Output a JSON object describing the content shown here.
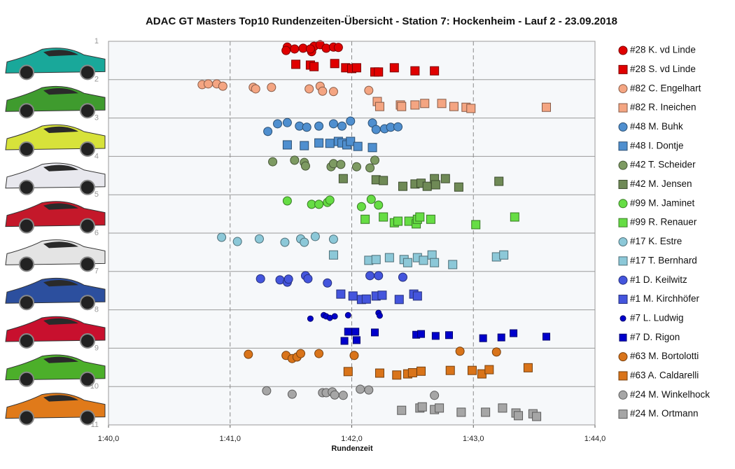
{
  "chart_data": {
    "type": "scatter",
    "title": "ADAC  GT Masters  Top10  Rundenzeiten-Übersicht  - Station  7: Hockenheim  - Lauf 2 - 23.09.2018",
    "x_label": "Rundenzeit",
    "xlim": [
      100,
      104
    ],
    "xticks": [
      {
        "value": 100,
        "label": "1:40,0"
      },
      {
        "value": 101,
        "label": "1:41,0"
      },
      {
        "value": 102,
        "label": "1:42,0"
      },
      {
        "value": 103,
        "label": "1:43,0"
      },
      {
        "value": 104,
        "label": "1:44,0"
      }
    ],
    "ylim": [
      11,
      1
    ],
    "yticks": [
      1,
      2,
      3,
      4,
      5,
      6,
      7,
      8,
      9,
      10,
      11
    ],
    "grid": true,
    "legend": "right",
    "series": [
      {
        "name": "#28 K. vd Linde",
        "color": "#e00000",
        "marker": "circle",
        "x": [
          101.47,
          101.53,
          101.6,
          101.67,
          101.69,
          101.74,
          101.79,
          101.85,
          101.89,
          101.46,
          101.66
        ],
        "values": [
          1.15,
          1.2,
          1.18,
          1.27,
          1.13,
          1.09,
          1.18,
          1.15,
          1.16,
          1.24,
          1.2
        ]
      },
      {
        "name": "#28 S. vd Linde",
        "color": "#e00000",
        "marker": "square",
        "x": [
          101.54,
          101.66,
          101.69,
          101.86,
          101.95,
          102.0,
          102.04,
          102.19,
          102.22,
          102.35,
          102.52,
          102.68
        ],
        "values": [
          1.6,
          1.62,
          1.66,
          1.58,
          1.69,
          1.71,
          1.69,
          1.8,
          1.8,
          1.69,
          1.77,
          1.77
        ]
      },
      {
        "name": "#82 C. Engelhart",
        "color": "#f4a582",
        "marker": "circle",
        "x": [
          100.77,
          100.82,
          100.89,
          100.94,
          101.19,
          101.21,
          101.34,
          101.65,
          101.74,
          101.76,
          101.85,
          102.14
        ],
        "values": [
          2.13,
          2.11,
          2.11,
          2.17,
          2.2,
          2.24,
          2.2,
          2.24,
          2.17,
          2.3,
          2.31,
          2.28
        ]
      },
      {
        "name": "#82 R. Ineichen",
        "color": "#f4a582",
        "marker": "square",
        "x": [
          102.21,
          102.23,
          102.4,
          102.41,
          102.52,
          102.6,
          102.74,
          102.84,
          102.94,
          102.98,
          103.6
        ],
        "values": [
          2.57,
          2.7,
          2.66,
          2.7,
          2.66,
          2.62,
          2.62,
          2.7,
          2.72,
          2.75,
          2.72
        ]
      },
      {
        "name": "#48 M. Buhk",
        "color": "#4f8fcf",
        "marker": "circle",
        "x": [
          101.31,
          101.39,
          101.47,
          101.57,
          101.63,
          101.73,
          101.85,
          101.92,
          101.99,
          102.17,
          102.2,
          102.27,
          102.32,
          102.38
        ],
        "values": [
          3.35,
          3.15,
          3.12,
          3.21,
          3.24,
          3.21,
          3.15,
          3.21,
          3.08,
          3.13,
          3.3,
          3.28,
          3.24,
          3.23
        ]
      },
      {
        "name": "#48 I. Dontje",
        "color": "#4f8fcf",
        "marker": "square",
        "x": [
          101.47,
          101.61,
          101.73,
          101.82,
          101.89,
          101.92,
          101.96,
          101.99,
          102.05,
          102.17
        ],
        "values": [
          3.7,
          3.72,
          3.65,
          3.66,
          3.61,
          3.65,
          3.7,
          3.61,
          3.74,
          3.77
        ]
      },
      {
        "name": "#42 T. Scheider",
        "color": "#7d9a62",
        "marker": "circle",
        "x": [
          101.35,
          101.53,
          101.61,
          101.62,
          101.83,
          101.85,
          101.91,
          102.04,
          102.15,
          102.19
        ],
        "values": [
          4.14,
          4.1,
          4.16,
          4.25,
          4.27,
          4.19,
          4.21,
          4.27,
          4.3,
          4.1
        ]
      },
      {
        "name": "#42 M. Jensen",
        "color": "#6f8a56",
        "marker": "square",
        "x": [
          101.93,
          102.2,
          102.26,
          102.42,
          102.52,
          102.57,
          102.62,
          102.68,
          102.69,
          102.77,
          102.88,
          103.21
        ],
        "values": [
          4.58,
          4.61,
          4.63,
          4.78,
          4.72,
          4.7,
          4.78,
          4.58,
          4.74,
          4.58,
          4.8,
          4.65
        ]
      },
      {
        "name": "#99 M. Jaminet",
        "color": "#66dd44",
        "marker": "circle",
        "x": [
          101.47,
          101.67,
          101.73,
          101.8,
          101.82,
          102.08,
          102.16,
          102.22
        ],
        "values": [
          5.16,
          5.25,
          5.25,
          5.2,
          5.14,
          5.31,
          5.12,
          5.27
        ]
      },
      {
        "name": "#99 R. Renauer",
        "color": "#66dd44",
        "marker": "square",
        "x": [
          102.11,
          102.26,
          102.35,
          102.38,
          102.47,
          102.53,
          102.54,
          102.56,
          102.65,
          103.02,
          103.34
        ],
        "values": [
          5.64,
          5.58,
          5.73,
          5.69,
          5.69,
          5.76,
          5.64,
          5.58,
          5.64,
          5.78,
          5.58
        ]
      },
      {
        "name": "#17 K. Estre",
        "color": "#8cc8d8",
        "marker": "circle",
        "x": [
          100.93,
          101.06,
          101.24,
          101.45,
          101.58,
          101.61,
          101.7,
          101.85
        ],
        "values": [
          6.11,
          6.22,
          6.15,
          6.24,
          6.15,
          6.24,
          6.09,
          6.16
        ]
      },
      {
        "name": "#17 T. Bernhard",
        "color": "#8cc8d8",
        "marker": "square",
        "x": [
          101.85,
          102.14,
          102.2,
          102.31,
          102.43,
          102.46,
          102.54,
          102.59,
          102.66,
          102.68,
          102.83,
          103.19,
          103.25
        ],
        "values": [
          6.57,
          6.71,
          6.69,
          6.64,
          6.69,
          6.77,
          6.64,
          6.71,
          6.57,
          6.77,
          6.82,
          6.62,
          6.57
        ]
      },
      {
        "name": "#1 D. Keilwitz",
        "color": "#4455dd",
        "marker": "circle",
        "x": [
          101.25,
          101.41,
          101.47,
          101.48,
          101.62,
          101.64,
          101.8,
          102.15,
          102.22,
          102.42
        ],
        "values": [
          7.19,
          7.22,
          7.28,
          7.2,
          7.11,
          7.19,
          7.3,
          7.11,
          7.11,
          7.15
        ]
      },
      {
        "name": "#1 M. Kirchhöfer",
        "color": "#4455dd",
        "marker": "square",
        "x": [
          101.91,
          102.01,
          102.08,
          102.12,
          102.2,
          102.25,
          102.39,
          102.51,
          102.54
        ],
        "values": [
          7.59,
          7.64,
          7.73,
          7.72,
          7.64,
          7.62,
          7.73,
          7.59,
          7.64
        ]
      },
      {
        "name": "#7 L. Ludwig",
        "color": "#0000cc",
        "marker": "dot",
        "x": [
          101.66,
          101.77,
          101.79,
          101.82,
          101.86,
          101.97,
          102.22,
          102.23
        ],
        "values": [
          8.23,
          8.14,
          8.17,
          8.21,
          8.17,
          8.14,
          8.08,
          8.15
        ]
      },
      {
        "name": "#7 D. Rigon",
        "color": "#0000cc",
        "marker": "smallsquare",
        "x": [
          101.94,
          101.97,
          102.03,
          102.04,
          102.19,
          102.53,
          102.57,
          102.69,
          102.8,
          103.08,
          103.23,
          103.33,
          103.6
        ],
        "values": [
          8.81,
          8.57,
          8.57,
          8.79,
          8.59,
          8.65,
          8.63,
          8.68,
          8.66,
          8.74,
          8.72,
          8.61,
          8.7
        ]
      },
      {
        "name": "#63 M. Bortolotti",
        "color": "#d9741a",
        "marker": "circle",
        "x": [
          101.15,
          101.46,
          101.51,
          101.55,
          101.58,
          101.73,
          102.02,
          102.89,
          103.19
        ],
        "values": [
          9.16,
          9.19,
          9.27,
          9.23,
          9.14,
          9.14,
          9.19,
          9.08,
          9.1
        ]
      },
      {
        "name": "#63 A. Caldarelli",
        "color": "#d9741a",
        "marker": "square",
        "x": [
          101.97,
          102.23,
          102.37,
          102.46,
          102.5,
          102.57,
          102.81,
          102.99,
          103.07,
          103.13,
          103.45
        ],
        "values": [
          9.61,
          9.65,
          9.7,
          9.67,
          9.64,
          9.6,
          9.58,
          9.58,
          9.67,
          9.56,
          9.51
        ]
      },
      {
        "name": "#24 M. Winkelhock",
        "color": "#a6a6a6",
        "marker": "circle",
        "x": [
          101.3,
          101.51,
          101.76,
          101.79,
          101.84,
          101.86,
          101.93,
          102.07,
          102.14,
          102.68
        ],
        "values": [
          10.11,
          10.2,
          10.16,
          10.16,
          10.14,
          10.22,
          10.23,
          10.07,
          10.09,
          10.23
        ]
      },
      {
        "name": "#24 M. Ortmann",
        "color": "#a6a6a6",
        "marker": "square",
        "x": [
          102.41,
          102.56,
          102.58,
          102.68,
          102.72,
          102.9,
          103.1,
          103.24,
          103.35,
          103.37,
          103.49,
          103.52
        ],
        "values": [
          10.62,
          10.56,
          10.53,
          10.6,
          10.56,
          10.67,
          10.67,
          10.56,
          10.69,
          10.76,
          10.71,
          10.78
        ]
      }
    ]
  }
}
